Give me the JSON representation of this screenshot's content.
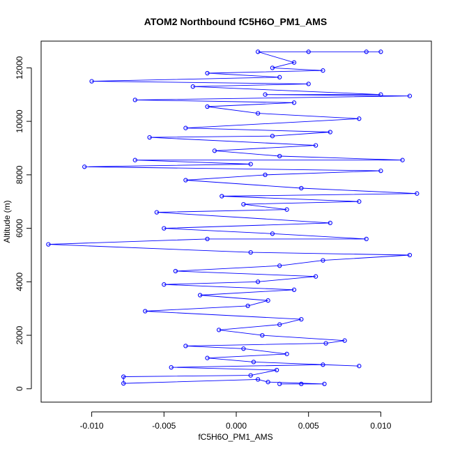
{
  "chart_data": {
    "type": "scatter",
    "title": "ATOM2 Northbound fC5H6O_PM1_AMS",
    "xlabel": "fC5H6O_PM1_AMS",
    "ylabel": "Altitude (m)",
    "xlim": [
      -0.0135,
      0.0135
    ],
    "ylim": [
      -500,
      13000
    ],
    "x_ticks": [
      "-0.010",
      "-0.005",
      "0.000",
      "0.005",
      "0.010"
    ],
    "x_tick_values": [
      -0.01,
      -0.005,
      0.0,
      0.005,
      0.01
    ],
    "y_ticks": [
      "0",
      "2000",
      "4000",
      "6000",
      "8000",
      "10000",
      "12000"
    ],
    "y_tick_values": [
      0,
      2000,
      4000,
      6000,
      8000,
      10000,
      12000
    ],
    "marker": "open-circle",
    "connected": true,
    "color": "#0000ff",
    "series": [
      {
        "points": [
          {
            "x": 0.003,
            "y": 180
          },
          {
            "x": 0.0045,
            "y": 180
          },
          {
            "x": 0.0061,
            "y": 180
          },
          {
            "x": 0.0022,
            "y": 250
          },
          {
            "x": 0.0015,
            "y": 350
          },
          {
            "x": -0.0078,
            "y": 200
          },
          {
            "x": -0.0078,
            "y": 450
          },
          {
            "x": 0.001,
            "y": 500
          },
          {
            "x": 0.0028,
            "y": 700
          },
          {
            "x": -0.0045,
            "y": 800
          },
          {
            "x": 0.006,
            "y": 900
          },
          {
            "x": 0.0085,
            "y": 850
          },
          {
            "x": 0.0012,
            "y": 1000
          },
          {
            "x": -0.002,
            "y": 1150
          },
          {
            "x": 0.0035,
            "y": 1300
          },
          {
            "x": 0.0005,
            "y": 1500
          },
          {
            "x": -0.0035,
            "y": 1600
          },
          {
            "x": 0.0062,
            "y": 1700
          },
          {
            "x": 0.0075,
            "y": 1800
          },
          {
            "x": 0.0018,
            "y": 2000
          },
          {
            "x": -0.0012,
            "y": 2200
          },
          {
            "x": 0.003,
            "y": 2400
          },
          {
            "x": 0.0045,
            "y": 2600
          },
          {
            "x": -0.0063,
            "y": 2900
          },
          {
            "x": 0.0008,
            "y": 3100
          },
          {
            "x": 0.0022,
            "y": 3300
          },
          {
            "x": -0.0025,
            "y": 3500
          },
          {
            "x": 0.004,
            "y": 3700
          },
          {
            "x": -0.005,
            "y": 3900
          },
          {
            "x": 0.0015,
            "y": 4000
          },
          {
            "x": 0.0055,
            "y": 4200
          },
          {
            "x": -0.0042,
            "y": 4400
          },
          {
            "x": 0.003,
            "y": 4600
          },
          {
            "x": 0.006,
            "y": 4800
          },
          {
            "x": 0.012,
            "y": 5000
          },
          {
            "x": 0.001,
            "y": 5100
          },
          {
            "x": -0.013,
            "y": 5400
          },
          {
            "x": -0.002,
            "y": 5600
          },
          {
            "x": 0.009,
            "y": 5600
          },
          {
            "x": 0.0025,
            "y": 5800
          },
          {
            "x": -0.005,
            "y": 6000
          },
          {
            "x": 0.0065,
            "y": 6200
          },
          {
            "x": -0.0055,
            "y": 6600
          },
          {
            "x": 0.0035,
            "y": 6700
          },
          {
            "x": 0.0005,
            "y": 6900
          },
          {
            "x": 0.0085,
            "y": 7000
          },
          {
            "x": -0.001,
            "y": 7200
          },
          {
            "x": 0.0125,
            "y": 7300
          },
          {
            "x": 0.0045,
            "y": 7500
          },
          {
            "x": -0.0035,
            "y": 7800
          },
          {
            "x": 0.002,
            "y": 8000
          },
          {
            "x": 0.01,
            "y": 8150
          },
          {
            "x": -0.0105,
            "y": 8300
          },
          {
            "x": 0.001,
            "y": 8400
          },
          {
            "x": -0.007,
            "y": 8550
          },
          {
            "x": 0.0115,
            "y": 8550
          },
          {
            "x": 0.003,
            "y": 8700
          },
          {
            "x": -0.0015,
            "y": 8900
          },
          {
            "x": 0.0055,
            "y": 9100
          },
          {
            "x": -0.006,
            "y": 9400
          },
          {
            "x": 0.0025,
            "y": 9450
          },
          {
            "x": 0.0065,
            "y": 9600
          },
          {
            "x": -0.0035,
            "y": 9750
          },
          {
            "x": 0.0085,
            "y": 10100
          },
          {
            "x": 0.0015,
            "y": 10300
          },
          {
            "x": -0.002,
            "y": 10550
          },
          {
            "x": 0.004,
            "y": 10700
          },
          {
            "x": -0.007,
            "y": 10800
          },
          {
            "x": 0.012,
            "y": 10950
          },
          {
            "x": 0.002,
            "y": 11000
          },
          {
            "x": 0.01,
            "y": 11000
          },
          {
            "x": -0.003,
            "y": 11300
          },
          {
            "x": 0.005,
            "y": 11400
          },
          {
            "x": -0.01,
            "y": 11500
          },
          {
            "x": 0.003,
            "y": 11650
          },
          {
            "x": -0.002,
            "y": 11800
          },
          {
            "x": 0.006,
            "y": 11900
          },
          {
            "x": 0.0025,
            "y": 12000
          },
          {
            "x": 0.004,
            "y": 12200
          },
          {
            "x": 0.0015,
            "y": 12600
          },
          {
            "x": 0.009,
            "y": 12600
          },
          {
            "x": 0.01,
            "y": 12600
          },
          {
            "x": 0.005,
            "y": 12600
          }
        ]
      }
    ]
  }
}
